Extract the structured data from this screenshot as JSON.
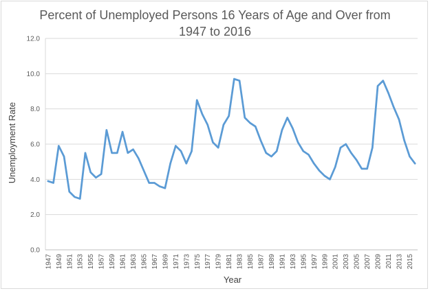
{
  "chart_data": {
    "type": "line",
    "title_line1": "Percent of Unemployed Persons 16 Years of Age and Over from",
    "title_line2": "1947 to 2016",
    "xlabel": "Year",
    "ylabel": "Unemployment Rate",
    "ylim": [
      0,
      12
    ],
    "yticks": [
      "0.0",
      "2.0",
      "4.0",
      "6.0",
      "8.0",
      "10.0",
      "12.0"
    ],
    "grid": true,
    "line_color": "#5b9bd5",
    "x": [
      1947,
      1948,
      1949,
      1950,
      1951,
      1952,
      1953,
      1954,
      1955,
      1956,
      1957,
      1958,
      1959,
      1960,
      1961,
      1962,
      1963,
      1964,
      1965,
      1966,
      1967,
      1968,
      1969,
      1970,
      1971,
      1972,
      1973,
      1974,
      1975,
      1976,
      1977,
      1978,
      1979,
      1980,
      1981,
      1982,
      1983,
      1984,
      1985,
      1986,
      1987,
      1988,
      1989,
      1990,
      1991,
      1992,
      1993,
      1994,
      1995,
      1996,
      1997,
      1998,
      1999,
      2000,
      2001,
      2002,
      2003,
      2004,
      2005,
      2006,
      2007,
      2008,
      2009,
      2010,
      2011,
      2012,
      2013,
      2014,
      2015,
      2016
    ],
    "values": [
      3.9,
      3.8,
      5.9,
      5.3,
      3.3,
      3.0,
      2.9,
      5.5,
      4.4,
      4.1,
      4.3,
      6.8,
      5.5,
      5.5,
      6.7,
      5.5,
      5.7,
      5.2,
      4.5,
      3.8,
      3.8,
      3.6,
      3.5,
      4.9,
      5.9,
      5.6,
      4.9,
      5.6,
      8.5,
      7.7,
      7.1,
      6.1,
      5.8,
      7.1,
      7.6,
      9.7,
      9.6,
      7.5,
      7.2,
      7.0,
      6.2,
      5.5,
      5.3,
      5.6,
      6.8,
      7.5,
      6.9,
      6.1,
      5.6,
      5.4,
      4.9,
      4.5,
      4.2,
      4.0,
      4.7,
      5.8,
      6.0,
      5.5,
      5.1,
      4.6,
      4.6,
      5.8,
      9.3,
      9.6,
      8.9,
      8.1,
      7.4,
      6.2,
      5.3,
      4.9
    ],
    "xtick_labels": [
      "1947",
      "1949",
      "1951",
      "1953",
      "1955",
      "1957",
      "1959",
      "1961",
      "1963",
      "1965",
      "1967",
      "1969",
      "1971",
      "1973",
      "1975",
      "1977",
      "1979",
      "1981",
      "1983",
      "1985",
      "1987",
      "1989",
      "1991",
      "1993",
      "1995",
      "1997",
      "1999",
      "2001",
      "2003",
      "2005",
      "2007",
      "2009",
      "2011",
      "2013",
      "2015"
    ]
  }
}
